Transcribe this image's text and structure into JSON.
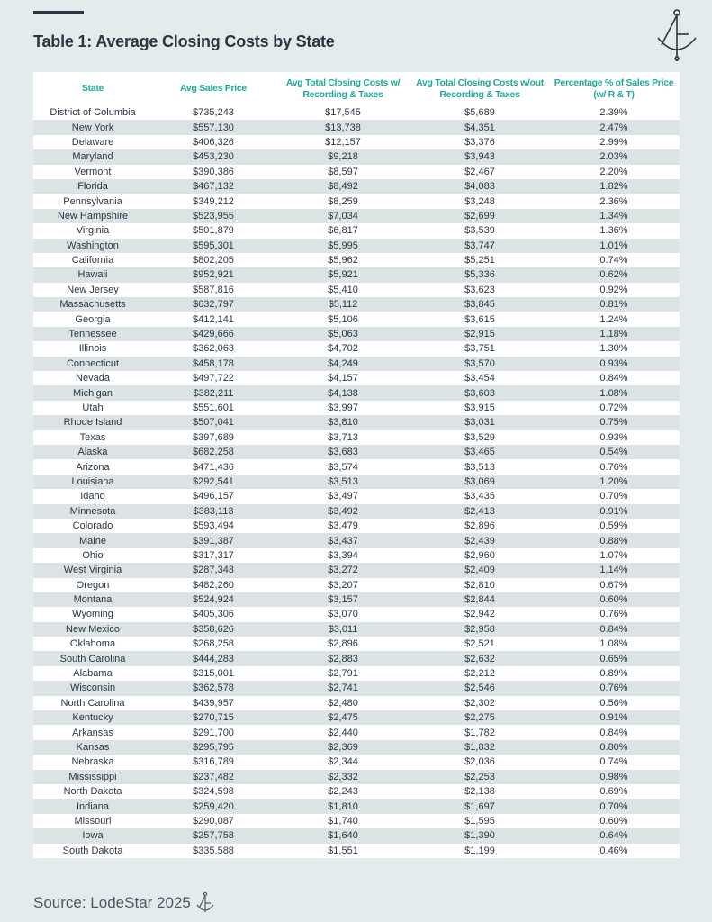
{
  "title": "Table 1: Average Closing Costs by State",
  "source": "Source: LodeStar 2025",
  "colors": {
    "accent": "#1fa99a",
    "text": "#2b3641",
    "background": "#e3ebec",
    "zebra": "#dbe3e5"
  },
  "icons": {
    "logo": "compass-anchor-logo"
  },
  "table": {
    "headers": [
      "State",
      "Avg Sales Price",
      "Avg Total Closing Costs w/ Recording & Taxes",
      "Avg Total Closing Costs w/out Recording & Taxes",
      "Percentage % of Sales Price (w/ R & T)"
    ],
    "rows": [
      [
        "District of Columbia",
        "$735,243",
        "$17,545",
        "$5,689",
        "2.39%"
      ],
      [
        "New York",
        "$557,130",
        "$13,738",
        "$4,351",
        "2.47%"
      ],
      [
        "Delaware",
        "$406,326",
        "$12,157",
        "$3,376",
        "2.99%"
      ],
      [
        "Maryland",
        "$453,230",
        "$9,218",
        "$3,943",
        "2.03%"
      ],
      [
        "Vermont",
        "$390,386",
        "$8,597",
        "$2,467",
        "2.20%"
      ],
      [
        "Florida",
        "$467,132",
        "$8,492",
        "$4,083",
        "1.82%"
      ],
      [
        "Pennsylvania",
        "$349,212",
        "$8,259",
        "$3,248",
        "2.36%"
      ],
      [
        "New Hampshire",
        "$523,955",
        "$7,034",
        "$2,699",
        "1.34%"
      ],
      [
        "Virginia",
        "$501,879",
        "$6,817",
        "$3,539",
        "1.36%"
      ],
      [
        "Washington",
        "$595,301",
        "$5,995",
        "$3,747",
        "1.01%"
      ],
      [
        "California",
        "$802,205",
        "$5,962",
        "$5,251",
        "0.74%"
      ],
      [
        "Hawaii",
        "$952,921",
        "$5,921",
        "$5,336",
        "0.62%"
      ],
      [
        "New Jersey",
        "$587,816",
        "$5,410",
        "$3,623",
        "0.92%"
      ],
      [
        "Massachusetts",
        "$632,797",
        "$5,112",
        "$3,845",
        "0.81%"
      ],
      [
        "Georgia",
        "$412,141",
        "$5,106",
        "$3,615",
        "1.24%"
      ],
      [
        "Tennessee",
        "$429,666",
        "$5,063",
        "$2,915",
        "1.18%"
      ],
      [
        "Illinois",
        "$362,063",
        "$4,702",
        "$3,751",
        "1.30%"
      ],
      [
        "Connecticut",
        "$458,178",
        "$4,249",
        "$3,570",
        "0.93%"
      ],
      [
        "Nevada",
        "$497,722",
        "$4,157",
        "$3,454",
        "0.84%"
      ],
      [
        "Michigan",
        "$382,211",
        "$4,138",
        "$3,603",
        "1.08%"
      ],
      [
        "Utah",
        "$551,601",
        "$3,997",
        "$3,915",
        "0.72%"
      ],
      [
        "Rhode Island",
        "$507,041",
        "$3,810",
        "$3,031",
        "0.75%"
      ],
      [
        "Texas",
        "$397,689",
        "$3,713",
        "$3,529",
        "0.93%"
      ],
      [
        "Alaska",
        "$682,258",
        "$3,683",
        "$3,465",
        "0.54%"
      ],
      [
        "Arizona",
        "$471,436",
        "$3,574",
        "$3,513",
        "0.76%"
      ],
      [
        "Louisiana",
        "$292,541",
        "$3,513",
        "$3,069",
        "1.20%"
      ],
      [
        "Idaho",
        "$496,157",
        "$3,497",
        "$3,435",
        "0.70%"
      ],
      [
        "Minnesota",
        "$383,113",
        "$3,492",
        "$2,413",
        "0.91%"
      ],
      [
        "Colorado",
        "$593,494",
        "$3,479",
        "$2,896",
        "0.59%"
      ],
      [
        "Maine",
        "$391,387",
        "$3,437",
        "$2,439",
        "0.88%"
      ],
      [
        "Ohio",
        "$317,317",
        "$3,394",
        "$2,960",
        "1.07%"
      ],
      [
        "West Virginia",
        "$287,343",
        "$3,272",
        "$2,409",
        "1.14%"
      ],
      [
        "Oregon",
        "$482,260",
        "$3,207",
        "$2,810",
        "0.67%"
      ],
      [
        "Montana",
        "$524,924",
        "$3,157",
        "$2,844",
        "0.60%"
      ],
      [
        "Wyoming",
        "$405,306",
        "$3,070",
        "$2,942",
        "0.76%"
      ],
      [
        "New Mexico",
        "$358,626",
        "$3,011",
        "$2,958",
        "0.84%"
      ],
      [
        "Oklahoma",
        "$268,258",
        "$2,896",
        "$2,521",
        "1.08%"
      ],
      [
        "South Carolina",
        "$444,283",
        "$2,883",
        "$2,632",
        "0.65%"
      ],
      [
        "Alabama",
        "$315,001",
        "$2,791",
        "$2,212",
        "0.89%"
      ],
      [
        "Wisconsin",
        "$362,578",
        "$2,741",
        "$2,546",
        "0.76%"
      ],
      [
        "North Carolina",
        "$439,957",
        "$2,480",
        "$2,302",
        "0.56%"
      ],
      [
        "Kentucky",
        "$270,715",
        "$2,475",
        "$2,275",
        "0.91%"
      ],
      [
        "Arkansas",
        "$291,700",
        "$2,440",
        "$1,782",
        "0.84%"
      ],
      [
        "Kansas",
        "$295,795",
        "$2,369",
        "$1,832",
        "0.80%"
      ],
      [
        "Nebraska",
        "$316,789",
        "$2,344",
        "$2,036",
        "0.74%"
      ],
      [
        "Mississippi",
        "$237,482",
        "$2,332",
        "$2,253",
        "0.98%"
      ],
      [
        "North Dakota",
        "$324,598",
        "$2,243",
        "$2,138",
        "0.69%"
      ],
      [
        "Indiana",
        "$259,420",
        "$1,810",
        "$1,697",
        "0.70%"
      ],
      [
        "Missouri",
        "$290,087",
        "$1,740",
        "$1,595",
        "0.60%"
      ],
      [
        "Iowa",
        "$257,758",
        "$1,640",
        "$1,390",
        "0.64%"
      ],
      [
        "South Dakota",
        "$335,588",
        "$1,551",
        "$1,199",
        "0.46%"
      ]
    ]
  }
}
